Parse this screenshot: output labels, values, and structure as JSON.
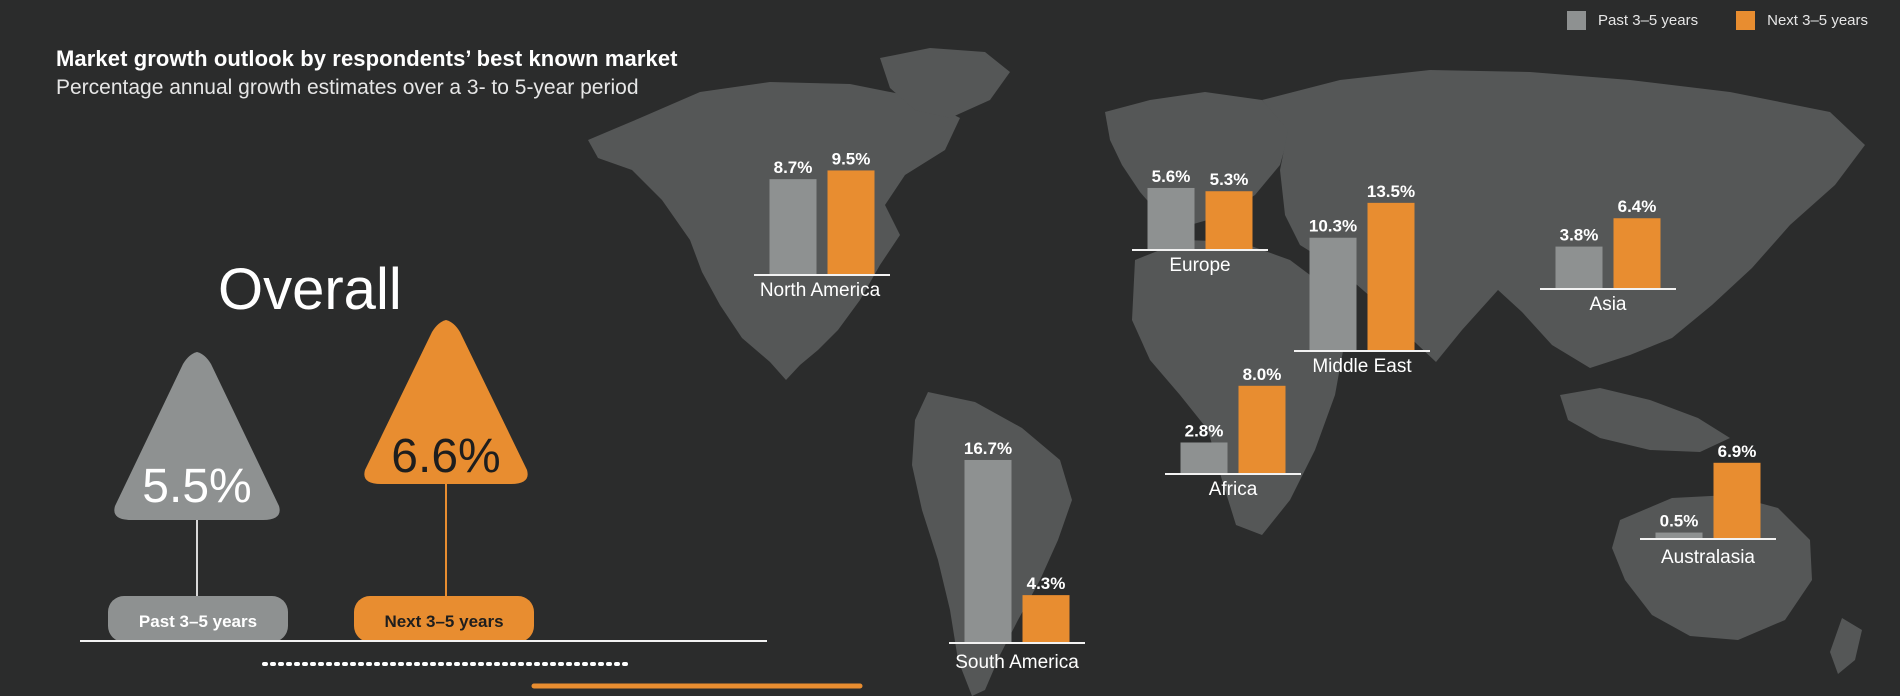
{
  "title": "Market growth outlook by respondents’ best known market",
  "subtitle": "Percentage annual growth estimates over a 3- to 5-year period",
  "colors": {
    "past": "#8e9191",
    "next": "#e88d30",
    "map": "#555757",
    "background": "#2b2c2c",
    "axis": "#f2f2f2"
  },
  "legend": {
    "past_label": "Past 3–5 years",
    "next_label": "Next 3–5 years"
  },
  "overall": {
    "heading": "Overall",
    "past_value_label": "5.5%",
    "next_value_label": "6.6%",
    "past_tag": "Past 3–5 years",
    "next_tag": "Next 3–5 years"
  },
  "chart_data": {
    "type": "bar",
    "title": "Market growth outlook by respondents’ best known market",
    "subtitle": "Percentage annual growth estimates over a 3- to 5-year period",
    "categories": [
      "North America",
      "Europe",
      "Middle East",
      "Asia",
      "South America",
      "Africa",
      "Australasia"
    ],
    "series": [
      {
        "name": "Past 3–5 years",
        "values": [
          8.7,
          5.6,
          10.3,
          3.8,
          16.7,
          2.8,
          0.5
        ],
        "labels": [
          "8.7%",
          "5.6%",
          "10.3%",
          "3.8%",
          "16.7%",
          "2.8%",
          "0.5%"
        ]
      },
      {
        "name": "Next 3–5 years",
        "values": [
          9.5,
          5.3,
          13.5,
          6.4,
          4.3,
          8.0,
          6.9
        ],
        "labels": [
          "9.5%",
          "5.3%",
          "13.5%",
          "6.4%",
          "4.3%",
          "8.0%",
          "6.9%"
        ]
      }
    ],
    "overall": {
      "past": 5.5,
      "next": 6.6
    },
    "legend_position": "top-right",
    "grid": false
  }
}
